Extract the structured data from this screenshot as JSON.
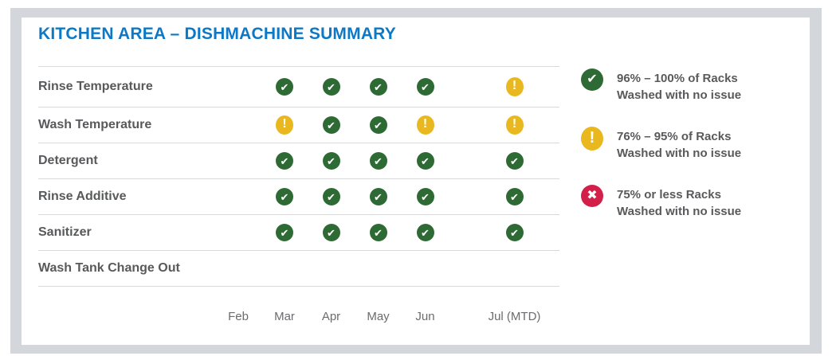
{
  "title": "KITCHEN AREA – DISHMACHINE SUMMARY",
  "colors": {
    "title_blue": "#0d78c6",
    "check_green": "#2e6b34",
    "warning_yellow": "#e9b81e",
    "error_red": "#d2204a",
    "row_label_gray": "#58595b",
    "month_gray": "#6b6c6f",
    "separator_gray": "#d8d9da",
    "frame_gray": "#d3d6da"
  },
  "glyphs": {
    "check": "✔",
    "warning": "!",
    "error": "✖"
  },
  "table": {
    "columns": [
      "Feb",
      "Mar",
      "Apr",
      "May",
      "Jun",
      "Jul (MTD)"
    ],
    "rows": [
      {
        "label": "Rinse Temperature",
        "statuses": [
          null,
          "check",
          "check",
          "check",
          "check",
          "warning"
        ]
      },
      {
        "label": "Wash Temperature",
        "statuses": [
          null,
          "warning",
          "check",
          "check",
          "warning",
          "warning"
        ]
      },
      {
        "label": "Detergent",
        "statuses": [
          null,
          "check",
          "check",
          "check",
          "check",
          "check"
        ]
      },
      {
        "label": "Rinse Additive",
        "statuses": [
          null,
          "check",
          "check",
          "check",
          "check",
          "check"
        ]
      },
      {
        "label": "Sanitizer",
        "statuses": [
          null,
          "check",
          "check",
          "check",
          "check",
          "check"
        ]
      },
      {
        "label": "Wash Tank Change Out",
        "statuses": [
          null,
          null,
          null,
          null,
          null,
          null
        ]
      }
    ]
  },
  "legend": [
    {
      "type": "check",
      "line1": "96% – 100% of Racks",
      "line2": "Washed with no issue"
    },
    {
      "type": "warning",
      "line1": "76% – 95% of Racks",
      "line2": "Washed with no issue"
    },
    {
      "type": "error",
      "line1": "75% or less Racks",
      "line2": "Washed with no issue"
    }
  ]
}
